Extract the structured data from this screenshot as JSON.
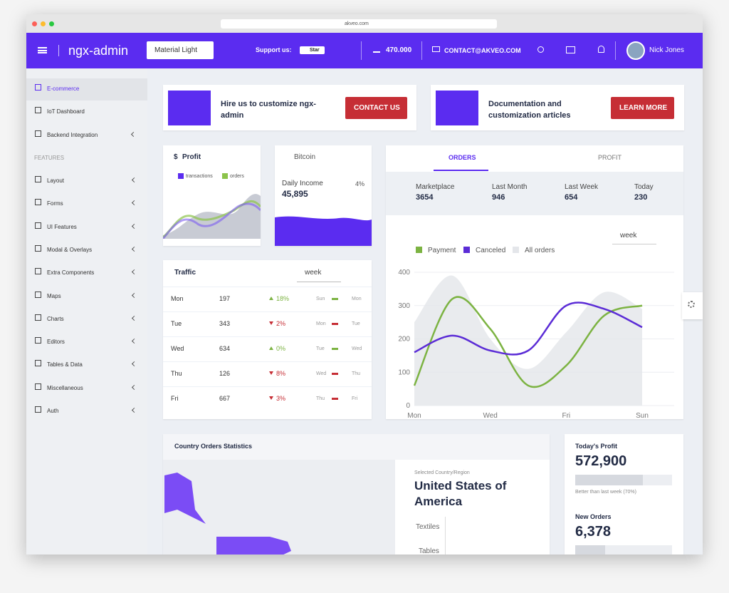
{
  "browser": {
    "url": "akveo.com"
  },
  "header": {
    "brand": "ngx-admin",
    "theme": "Material Light",
    "support": "Support us:",
    "star": "Star",
    "downloads": "470.000",
    "contact": "CONTACT@AKVEO.COM",
    "user": "Nick Jones"
  },
  "sidebar": {
    "items": [
      "E-commerce",
      "IoT Dashboard",
      "Backend Integration"
    ],
    "section": "FEATURES",
    "features": [
      "Layout",
      "Forms",
      "UI Features",
      "Modal & Overlays",
      "Extra Components",
      "Maps",
      "Charts",
      "Editors",
      "Tables & Data",
      "Miscellaneous",
      "Auth"
    ]
  },
  "banners": [
    {
      "text": "Hire us to customize ngx-admin",
      "button": "CONTACT US"
    },
    {
      "text": "Documentation and customization articles",
      "button": "LEARN MORE"
    }
  ],
  "profit_card": {
    "currency": "$",
    "title": "Profit",
    "legend": [
      "transactions",
      "orders"
    ]
  },
  "income_card": {
    "currency": "Bitcoin",
    "label": "Daily Income",
    "value": "45,895",
    "change": "4%"
  },
  "traffic": {
    "title": "Traffic",
    "period": "week",
    "rows": [
      {
        "day": "Mon",
        "value": "197",
        "change": "18%",
        "trend": "up",
        "prev": "Sun",
        "current": "Mon"
      },
      {
        "day": "Tue",
        "value": "343",
        "change": "2%",
        "trend": "down",
        "prev": "Mon",
        "current": "Tue"
      },
      {
        "day": "Wed",
        "value": "634",
        "change": "0%",
        "trend": "up",
        "prev": "Tue",
        "current": "Wed"
      },
      {
        "day": "Thu",
        "value": "126",
        "change": "8%",
        "trend": "down",
        "prev": "Wed",
        "current": "Thu"
      },
      {
        "day": "Fri",
        "value": "667",
        "change": "3%",
        "trend": "down",
        "prev": "Thu",
        "current": "Fri"
      }
    ]
  },
  "orders": {
    "tabs": [
      "ORDERS",
      "PROFIT"
    ],
    "stats": [
      {
        "label": "Marketplace",
        "value": "3654"
      },
      {
        "label": "Last Month",
        "value": "946"
      },
      {
        "label": "Last Week",
        "value": "654"
      },
      {
        "label": "Today",
        "value": "230"
      }
    ],
    "period": "week"
  },
  "chart_data": {
    "type": "line",
    "categories": [
      "Mon",
      null,
      "Wed",
      null,
      "Fri",
      null,
      "Sun"
    ],
    "series": [
      {
        "name": "Payment",
        "color": "#7cb342",
        "values": [
          60,
          320,
          230,
          60,
          120,
          270,
          300
        ]
      },
      {
        "name": "Canceled",
        "color": "#5b2cd6",
        "values": [
          160,
          210,
          165,
          165,
          300,
          290,
          235
        ]
      },
      {
        "name": "All orders",
        "color": "#e4e6ea",
        "values": [
          250,
          390,
          200,
          110,
          220,
          340,
          290
        ],
        "area": true
      }
    ],
    "ylim": [
      0,
      400
    ],
    "yticks": [
      0,
      100,
      200,
      300,
      400
    ],
    "grid": true
  },
  "country": {
    "title": "Country Orders Statistics",
    "selected_label": "Selected Country/Region",
    "selected": "United States of America",
    "categories": [
      "Textiles",
      "Tables"
    ]
  },
  "summary": {
    "profit_label": "Today's Profit",
    "profit": "572,900",
    "note": "Better than last week (70%)",
    "orders_label": "New Orders",
    "orders": "6,378"
  }
}
